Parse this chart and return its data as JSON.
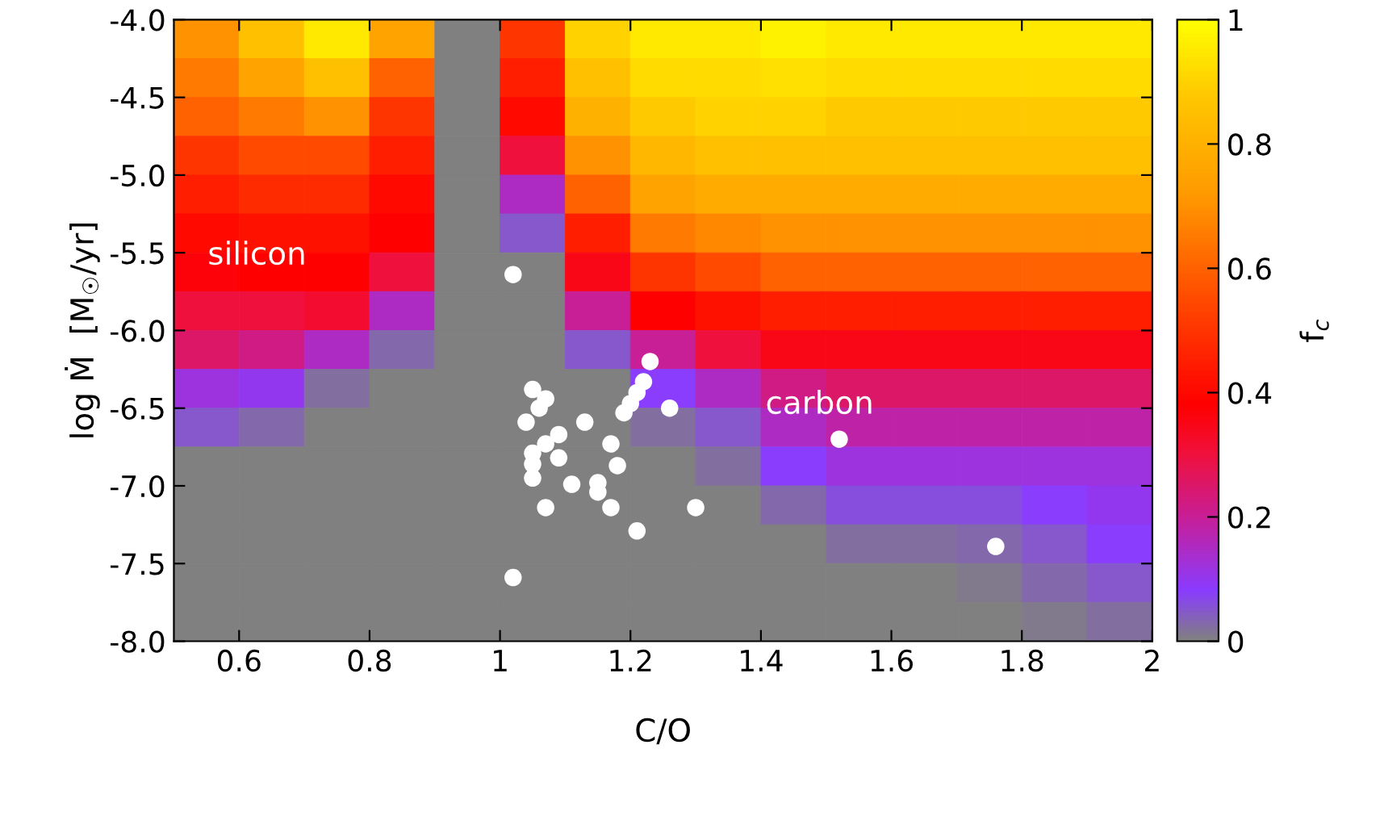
{
  "chart_data": {
    "type": "heatmap",
    "xlabel": "C/O",
    "ylabel": "log Ṁ  [M$_{☉}$/yr]",
    "clabel": "f$_{c}$",
    "xlim": [
      0.5,
      2
    ],
    "xticks": [
      0.6,
      0.8,
      1,
      1.2,
      1.4,
      1.6,
      1.8,
      2
    ],
    "ylim": [
      -8,
      -4
    ],
    "yticks": [
      {
        "value": -8,
        "label": "-8.0"
      },
      -7.5,
      {
        "value": -7,
        "label": "-7.0"
      },
      -6.5,
      {
        "value": -6,
        "label": "-6.0"
      },
      -5.5,
      {
        "value": -5,
        "label": "-5.0"
      },
      -4.5,
      {
        "value": -4,
        "label": "-4.0"
      }
    ],
    "clim": [
      0,
      1
    ],
    "cticks": [
      0,
      0.2,
      0.4,
      0.6,
      0.8,
      1
    ],
    "x": [
      0.55,
      0.65,
      0.75,
      0.85,
      0.95,
      1.05,
      1.15,
      1.25,
      1.35,
      1.45,
      1.55,
      1.65,
      1.75,
      1.85,
      1.95
    ],
    "y": [
      -4.125,
      -4.375,
      -4.625,
      -4.875,
      -5.125,
      -5.375,
      -5.625,
      -5.875,
      -6.125,
      -6.375,
      -6.625,
      -6.875,
      -7.125,
      -7.375,
      -7.625,
      -7.875
    ],
    "cells": [
      [
        0.7,
        0.85,
        0.95,
        0.75,
        0,
        0.5,
        0.9,
        0.95,
        0.95,
        0.97,
        0.95,
        0.95,
        0.95,
        0.95,
        0.95
      ],
      [
        0.65,
        0.75,
        0.85,
        0.6,
        0,
        0.45,
        0.85,
        0.92,
        0.92,
        0.93,
        0.92,
        0.92,
        0.92,
        0.92,
        0.92
      ],
      [
        0.6,
        0.65,
        0.7,
        0.5,
        0,
        0.4,
        0.8,
        0.88,
        0.9,
        0.9,
        0.88,
        0.88,
        0.88,
        0.88,
        0.88
      ],
      [
        0.5,
        0.55,
        0.55,
        0.45,
        0,
        0.3,
        0.7,
        0.82,
        0.85,
        0.85,
        0.85,
        0.85,
        0.85,
        0.85,
        0.85
      ],
      [
        0.45,
        0.48,
        0.48,
        0.4,
        0,
        0.15,
        0.6,
        0.75,
        0.78,
        0.78,
        0.78,
        0.78,
        0.78,
        0.78,
        0.78
      ],
      [
        0.4,
        0.42,
        0.42,
        0.38,
        0,
        0.05,
        0.45,
        0.65,
        0.68,
        0.7,
        0.7,
        0.7,
        0.7,
        0.7,
        0.7
      ],
      [
        0.37,
        0.38,
        0.38,
        0.3,
        0,
        0,
        0.35,
        0.5,
        0.55,
        0.6,
        0.6,
        0.6,
        0.6,
        0.6,
        0.6
      ],
      [
        0.3,
        0.3,
        0.32,
        0.15,
        0,
        0,
        0.2,
        0.38,
        0.42,
        0.45,
        0.45,
        0.45,
        0.45,
        0.45,
        0.45
      ],
      [
        0.25,
        0.22,
        0.15,
        0.03,
        0,
        0,
        0.05,
        0.2,
        0.3,
        0.35,
        0.35,
        0.35,
        0.35,
        0.35,
        0.35
      ],
      [
        0.12,
        0.1,
        0.02,
        0,
        0,
        0,
        0,
        0.08,
        0.15,
        0.22,
        0.25,
        0.25,
        0.25,
        0.25,
        0.25
      ],
      [
        0.05,
        0.03,
        0,
        0,
        0,
        0,
        0,
        0.02,
        0.05,
        0.15,
        0.18,
        0.18,
        0.18,
        0.18,
        0.18
      ],
      [
        0,
        0,
        0,
        0,
        0,
        0,
        0,
        0,
        0.02,
        0.08,
        0.12,
        0.12,
        0.12,
        0.12,
        0.12
      ],
      [
        0,
        0,
        0,
        0,
        0,
        0,
        0,
        0,
        0,
        0.03,
        0.06,
        0.06,
        0.06,
        0.08,
        0.1
      ],
      [
        0,
        0,
        0,
        0,
        0,
        0,
        0,
        0,
        0,
        0,
        0.02,
        0.02,
        0.03,
        0.05,
        0.08
      ],
      [
        0,
        0,
        0,
        0,
        0,
        0,
        0,
        0,
        0,
        0,
        0,
        0,
        0.01,
        0.03,
        0.05
      ],
      [
        0,
        0,
        0,
        0,
        0,
        0,
        0,
        0,
        0,
        0,
        0,
        0,
        0,
        0.01,
        0.02
      ]
    ],
    "series": [
      {
        "type": "scatter",
        "color": "#ffffff",
        "x": [
          1.02,
          1.23,
          1.22,
          1.21,
          1.2,
          1.19,
          1.26,
          1.52,
          1.76,
          1.05,
          1.07,
          1.04,
          1.06,
          1.13,
          1.09,
          1.07,
          1.05,
          1.05,
          1.09,
          1.17,
          1.18,
          1.05,
          1.11,
          1.15,
          1.15,
          1.17,
          1.07,
          1.21,
          1.3,
          1.02
        ],
        "values": [
          -5.64,
          -6.2,
          -6.33,
          -6.4,
          -6.47,
          -6.53,
          -6.5,
          -6.7,
          -7.39,
          -6.38,
          -6.44,
          -6.59,
          -6.5,
          -6.59,
          -6.67,
          -6.73,
          -6.79,
          -6.86,
          -6.82,
          -6.73,
          -6.87,
          -6.95,
          -6.99,
          -6.98,
          -7.04,
          -7.14,
          -7.14,
          -7.29,
          -7.14,
          -7.59
        ]
      }
    ],
    "annotations": [
      "silicon",
      "carbon"
    ]
  }
}
